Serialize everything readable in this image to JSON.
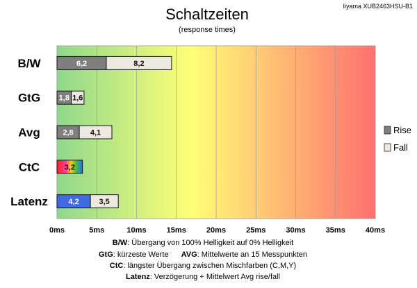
{
  "header": {
    "title": "Schaltzeiten",
    "subtitle": "(response times)",
    "model": "Iiyama XUB2463HSU-B1"
  },
  "chart_data": {
    "type": "bar",
    "orientation": "horizontal",
    "stacked": true,
    "categories": [
      "B/W",
      "GtG",
      "Avg",
      "CtC",
      "Latenz"
    ],
    "series": [
      {
        "name": "Rise",
        "values": [
          6.2,
          1.8,
          2.8,
          3.2,
          4.2
        ],
        "value_labels": [
          "6,2",
          "1,8",
          "2,8",
          "3,2",
          "4,2"
        ]
      },
      {
        "name": "Fall",
        "values": [
          8.2,
          1.6,
          4.1,
          null,
          3.5
        ],
        "value_labels": [
          "8,2",
          "1,6",
          "4,1",
          "",
          "3,5"
        ]
      }
    ],
    "x_ticks": [
      "0ms",
      "5ms",
      "10ms",
      "15ms",
      "20ms",
      "25ms",
      "30ms",
      "35ms",
      "40ms"
    ],
    "xlim": [
      0,
      40
    ],
    "grid": true,
    "legend": "right",
    "colors": {
      "rise": "#7f7f7f",
      "fall": "#ece9e0",
      "latenz_rise": "#4169e1",
      "background_gradient": [
        "#8fd88c",
        "#ffff77",
        "#ff7070"
      ]
    }
  },
  "footer": {
    "line1": {
      "key": "B/W",
      "text": ":  Übergang von 100% Helligkeit auf 0% Helligkeit"
    },
    "line2": {
      "key": "GtG",
      "text": ": kürzeste  Werte",
      "key2": "AVG",
      "text2": ": Mittelwerte  an 15 Messpunkten"
    },
    "line3": {
      "key": "CtC",
      "text": ": längster Übergang  zwischen Mischfarben  (C,M,Y)"
    },
    "line4": {
      "key": "Latenz",
      "text": ": Verzögerung  + Mittelwert Avg rise/fall"
    }
  }
}
